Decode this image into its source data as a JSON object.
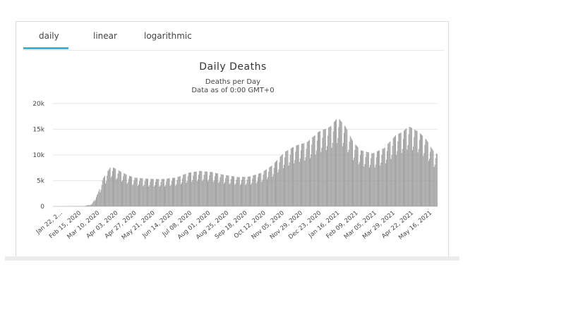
{
  "tabs": [
    {
      "label": "daily",
      "active": true
    },
    {
      "label": "linear",
      "active": false
    },
    {
      "label": "logarithmic",
      "active": false
    }
  ],
  "colors": {
    "bar": "#9e9e9e",
    "accent": "#33b5e5",
    "grid": "#e6e6e6"
  },
  "chart_data": {
    "type": "bar",
    "title": "Daily Deaths",
    "subtitle": "Deaths per Day",
    "subtitle2": "Data as of 0:00 GMT+0",
    "xlabel": "",
    "ylabel": "",
    "ylim": [
      0,
      20000
    ],
    "yticks": [
      0,
      5000,
      10000,
      15000,
      20000
    ],
    "ytick_labels": [
      "0",
      "5k",
      "10k",
      "15k",
      "20k"
    ],
    "x_tick_labels": [
      "Jan 22, 2...",
      "Feb 15, 2020",
      "Mar 10, 2020",
      "Apr 03, 2020",
      "Apr 27, 2020",
      "May 21, 2020",
      "Jun 14, 2020",
      "Jul 08, 2020",
      "Aug 01, 2020",
      "Aug 25, 2020",
      "Sep 18, 2020",
      "Oct 12, 2020",
      "Nov 05, 2020",
      "Nov 29, 2020",
      "Dec 23, 2020",
      "Jan 16, 2021",
      "Feb 09, 2021",
      "Mar 05, 2021",
      "Mar 29, 2021",
      "Apr 22, 2021",
      "May 16, 2021"
    ],
    "x_tick_days": [
      0,
      24,
      48,
      72,
      96,
      120,
      144,
      168,
      192,
      216,
      240,
      264,
      288,
      312,
      336,
      360,
      384,
      408,
      432,
      456,
      480
    ],
    "x_start": "Jan 22, 2020",
    "n_days": 500,
    "envelope": [
      [
        0,
        0
      ],
      [
        40,
        50
      ],
      [
        50,
        400
      ],
      [
        58,
        2500
      ],
      [
        65,
        5500
      ],
      [
        75,
        7800
      ],
      [
        85,
        7000
      ],
      [
        95,
        6200
      ],
      [
        105,
        5600
      ],
      [
        120,
        5400
      ],
      [
        140,
        5300
      ],
      [
        160,
        5600
      ],
      [
        175,
        6500
      ],
      [
        190,
        6900
      ],
      [
        205,
        6700
      ],
      [
        220,
        6200
      ],
      [
        240,
        5700
      ],
      [
        255,
        5800
      ],
      [
        270,
        6500
      ],
      [
        285,
        8000
      ],
      [
        300,
        10500
      ],
      [
        315,
        11800
      ],
      [
        330,
        12500
      ],
      [
        345,
        14500
      ],
      [
        360,
        15500
      ],
      [
        370,
        17300
      ],
      [
        380,
        15500
      ],
      [
        390,
        12500
      ],
      [
        400,
        10900
      ],
      [
        415,
        10300
      ],
      [
        430,
        11300
      ],
      [
        445,
        13800
      ],
      [
        455,
        14600
      ],
      [
        462,
        15600
      ],
      [
        475,
        14500
      ],
      [
        485,
        13000
      ],
      [
        495,
        10600
      ],
      [
        499,
        10200
      ]
    ],
    "weekly_dip": 0.72,
    "grid": true,
    "legend": "none"
  }
}
